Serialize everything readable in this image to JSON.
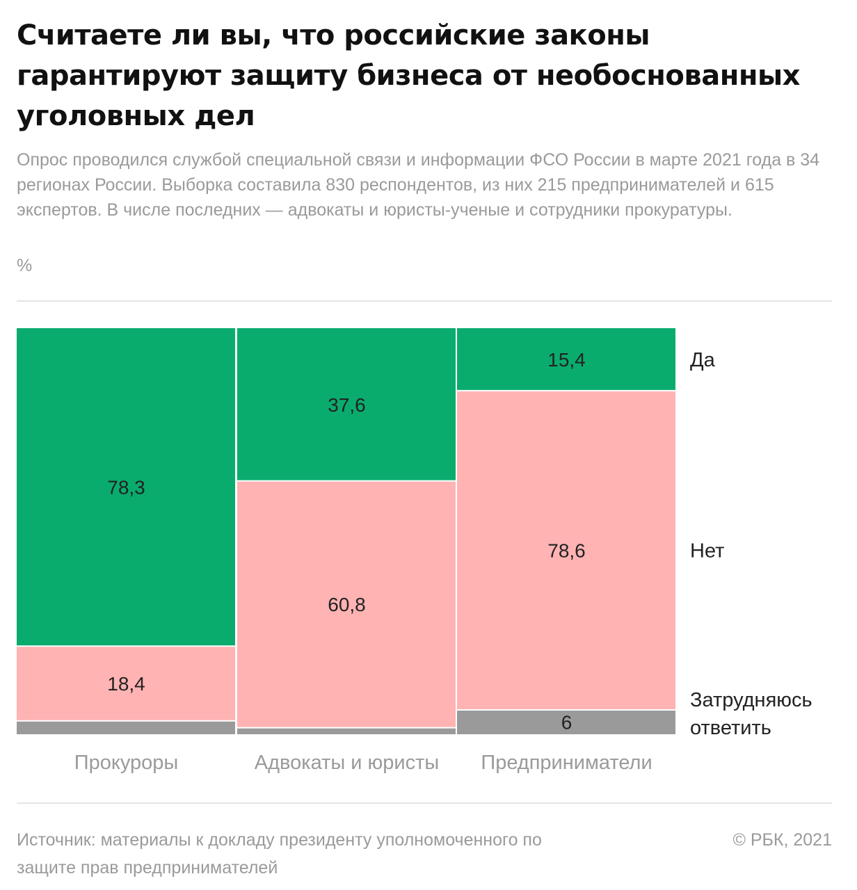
{
  "header": {
    "title": "Считаете ли вы, что российские законы гарантируют защиту бизнеса от необоснованных уголовных дел",
    "subtitle": "Опрос проводился службой специальной связи и информации ФСО России в марте 2021 года в 34 регионах России. Выборка составила 830 респондентов, из них 215 предпринимателей и 615 экспертов. В числе последних — адвокаты и юристы-ученые и сотрудники прокуратуры.",
    "unit": "%"
  },
  "chart_data": {
    "type": "bar",
    "stacked": true,
    "orientation": "vertical",
    "categories": [
      "Прокуроры",
      "Адвокаты и юристы",
      "Предприниматели"
    ],
    "series": [
      {
        "name": "Да",
        "values": [
          78.3,
          37.6,
          15.4
        ],
        "labels": [
          "78,3",
          "37,6",
          "15,4"
        ],
        "color": "#0aac6e"
      },
      {
        "name": "Нет",
        "values": [
          18.4,
          60.8,
          78.6
        ],
        "labels": [
          "18,4",
          "60,8",
          "78,6"
        ],
        "color": "#ffb3b3"
      },
      {
        "name": "Затрудняюсь ответить",
        "values": [
          3.3,
          1.6,
          6
        ],
        "labels": [
          "",
          "",
          "6"
        ],
        "color": "#9a9a9a"
      }
    ],
    "ylim": [
      0,
      100
    ],
    "legend_placement": "right",
    "grid": false
  },
  "footer": {
    "source": "Источник: материалы к докладу президенту уполномоченного по защите прав предпринимателей",
    "copyright": "© РБК, 2021"
  }
}
